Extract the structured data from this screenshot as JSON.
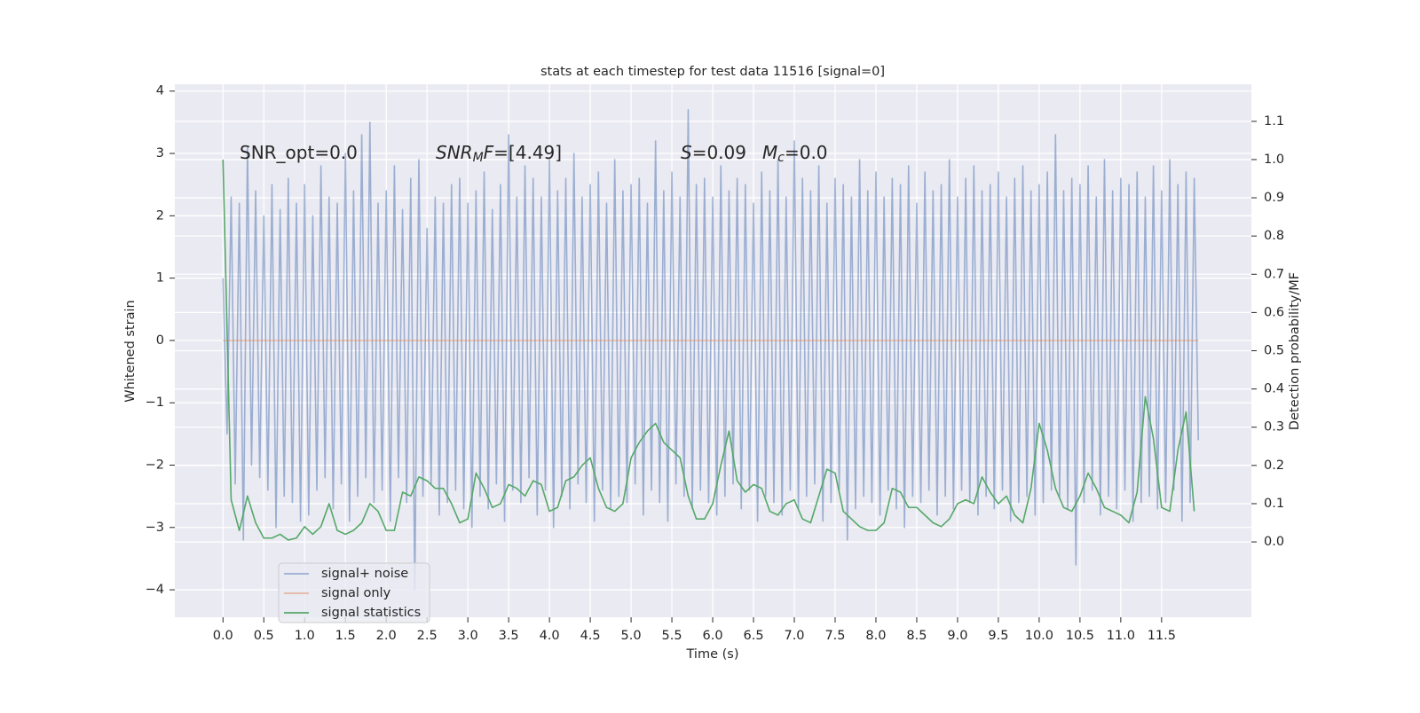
{
  "chart_data": {
    "type": "line",
    "title": "stats at each timestep for test data 11516 [signal=0]",
    "xlabel": "Time (s)",
    "ylabel": "Whitened strain",
    "y2label": "Detection probability/MF",
    "xlim": [
      -0.59,
      12.6
    ],
    "ylim": [
      -4.44,
      4.11
    ],
    "y2lim": [
      -0.197,
      1.197
    ],
    "xticks": [
      {
        "value": 0,
        "label": "0.0"
      },
      0.5,
      {
        "value": 1,
        "label": "1.0"
      },
      1.5,
      {
        "value": 2,
        "label": "2.0"
      },
      2.5,
      {
        "value": 3,
        "label": "3.0"
      },
      3.5,
      {
        "value": 4,
        "label": "4.0"
      },
      4.5,
      {
        "value": 5,
        "label": "5.0"
      },
      5.5,
      {
        "value": 6,
        "label": "6.0"
      },
      6.5,
      {
        "value": 7,
        "label": "7.0"
      },
      7.5,
      {
        "value": 8,
        "label": "8.0"
      },
      8.5,
      {
        "value": 9,
        "label": "9.0"
      },
      9.5,
      {
        "value": 10,
        "label": "10.0"
      },
      10.5,
      {
        "value": 11,
        "label": "11.0"
      },
      11.5
    ],
    "yticks": [
      {
        "value": -4,
        "label": "−4"
      },
      {
        "value": -3,
        "label": "−3"
      },
      {
        "value": -2,
        "label": "−2"
      },
      {
        "value": -1,
        "label": "−1"
      },
      0,
      1,
      2,
      3,
      4
    ],
    "y2ticks": [
      {
        "value": 0,
        "label": "0.0"
      },
      0.1,
      0.2,
      0.3,
      0.4,
      0.5,
      0.6,
      0.7,
      0.8,
      0.9,
      {
        "value": 1,
        "label": "1.0"
      },
      1.1
    ],
    "grid": true,
    "legend_position": "lower left",
    "annotations": [
      [
        {
          "text": "SNR_opt=0.0",
          "italic": false,
          "sub": false
        }
      ],
      [
        {
          "text": "SNR",
          "italic": true,
          "sub": false
        },
        {
          "text": "M",
          "italic": true,
          "sub": true
        },
        {
          "text": "F",
          "italic": true,
          "sub": false
        },
        {
          "text": "=[4.49]",
          "italic": false,
          "sub": false
        }
      ],
      [
        {
          "text": "S",
          "italic": true,
          "sub": false
        },
        {
          "text": "=0.09",
          "italic": false,
          "sub": false
        }
      ],
      [
        {
          "text": "M",
          "italic": true,
          "sub": false
        },
        {
          "text": "c",
          "italic": true,
          "sub": true
        },
        {
          "text": "=0.0",
          "italic": false,
          "sub": false
        }
      ]
    ],
    "series": [
      {
        "name": "signal+ noise",
        "color": "#4c72b0",
        "opacity": 0.5,
        "axis": "y",
        "x": [
          0,
          0.05,
          0.1,
          0.15,
          0.2,
          0.25,
          0.3,
          0.35,
          0.4,
          0.45,
          0.5,
          0.55,
          0.6,
          0.65,
          0.7,
          0.75,
          0.8,
          0.85,
          0.9,
          0.95,
          1,
          1.05,
          1.1,
          1.15,
          1.2,
          1.25,
          1.3,
          1.35,
          1.4,
          1.45,
          1.5,
          1.55,
          1.6,
          1.65,
          1.7,
          1.75,
          1.8,
          1.85,
          1.9,
          1.95,
          2,
          2.05,
          2.1,
          2.15,
          2.2,
          2.25,
          2.3,
          2.35,
          2.4,
          2.45,
          2.5,
          2.55,
          2.6,
          2.65,
          2.7,
          2.75,
          2.8,
          2.85,
          2.9,
          2.95,
          3,
          3.05,
          3.1,
          3.15,
          3.2,
          3.25,
          3.3,
          3.35,
          3.4,
          3.45,
          3.5,
          3.55,
          3.6,
          3.65,
          3.7,
          3.75,
          3.8,
          3.85,
          3.9,
          3.95,
          4,
          4.05,
          4.1,
          4.15,
          4.2,
          4.25,
          4.3,
          4.35,
          4.4,
          4.45,
          4.5,
          4.55,
          4.6,
          4.65,
          4.7,
          4.75,
          4.8,
          4.85,
          4.9,
          4.95,
          5,
          5.05,
          5.1,
          5.15,
          5.2,
          5.25,
          5.3,
          5.35,
          5.4,
          5.45,
          5.5,
          5.55,
          5.6,
          5.65,
          5.7,
          5.75,
          5.8,
          5.85,
          5.9,
          5.95,
          6,
          6.05,
          6.1,
          6.15,
          6.2,
          6.25,
          6.3,
          6.35,
          6.4,
          6.45,
          6.5,
          6.55,
          6.6,
          6.65,
          6.7,
          6.75,
          6.8,
          6.85,
          6.9,
          6.95,
          7,
          7.05,
          7.1,
          7.15,
          7.2,
          7.25,
          7.3,
          7.35,
          7.4,
          7.45,
          7.5,
          7.55,
          7.6,
          7.65,
          7.7,
          7.75,
          7.8,
          7.85,
          7.9,
          7.95,
          8,
          8.05,
          8.1,
          8.15,
          8.2,
          8.25,
          8.3,
          8.35,
          8.4,
          8.45,
          8.5,
          8.55,
          8.6,
          8.65,
          8.7,
          8.75,
          8.8,
          8.85,
          8.9,
          8.95,
          9,
          9.05,
          9.1,
          9.15,
          9.2,
          9.25,
          9.3,
          9.35,
          9.4,
          9.45,
          9.5,
          9.55,
          9.6,
          9.65,
          9.7,
          9.75,
          9.8,
          9.85,
          9.9,
          9.95,
          10,
          10.05,
          10.1,
          10.15,
          10.2,
          10.25,
          10.3,
          10.35,
          10.4,
          10.45,
          10.5,
          10.55,
          10.6,
          10.65,
          10.7,
          10.75,
          10.8,
          10.85,
          10.9,
          10.95,
          11,
          11.05,
          11.1,
          11.15,
          11.2,
          11.25,
          11.3,
          11.35,
          11.4,
          11.45,
          11.5,
          11.55,
          11.6,
          11.65,
          11.7,
          11.75,
          11.8,
          11.85,
          11.9,
          11.95
        ],
        "values": [
          1.0,
          -1.5,
          2.3,
          -2.3,
          2.2,
          -3.2,
          3.1,
          -2.0,
          2.4,
          -2.2,
          2.0,
          -2.4,
          2.5,
          -3.0,
          2.1,
          -2.5,
          2.6,
          -2.6,
          2.2,
          -2.9,
          2.5,
          -2.8,
          2.0,
          -2.4,
          2.8,
          -2.2,
          2.3,
          -2.7,
          2.2,
          -2.3,
          3.0,
          -2.9,
          2.4,
          -2.5,
          3.3,
          -2.2,
          3.5,
          -2.6,
          2.2,
          -2.4,
          2.4,
          -2.9,
          2.8,
          -2.2,
          2.1,
          -2.6,
          2.6,
          -4.0,
          2.9,
          -2.5,
          1.8,
          -2.3,
          2.3,
          -2.8,
          2.2,
          -2.6,
          2.5,
          -2.4,
          2.6,
          -2.7,
          2.2,
          -3.0,
          2.4,
          -2.5,
          2.7,
          -2.7,
          2.1,
          -2.3,
          2.5,
          -2.9,
          3.3,
          -2.4,
          2.3,
          -2.6,
          2.8,
          -2.2,
          2.6,
          -2.8,
          2.3,
          -2.4,
          2.9,
          -3.0,
          2.4,
          -2.5,
          2.6,
          -2.7,
          3.0,
          -2.3,
          2.3,
          -2.6,
          2.5,
          -2.9,
          2.7,
          -2.4,
          2.2,
          -2.7,
          2.9,
          -2.5,
          2.4,
          -2.6,
          2.5,
          -2.3,
          2.6,
          -2.8,
          2.2,
          -2.4,
          3.2,
          -2.6,
          2.4,
          -2.9,
          2.7,
          -2.3,
          2.3,
          -2.5,
          3.7,
          -2.7,
          2.5,
          -2.4,
          2.6,
          -2.6,
          2.3,
          -2.8,
          2.8,
          -2.5,
          2.4,
          -2.3,
          2.6,
          -2.7,
          2.5,
          -2.4,
          2.2,
          -2.9,
          2.7,
          -2.5,
          2.4,
          -2.6,
          2.9,
          -2.8,
          2.3,
          -2.4,
          3.2,
          -2.7,
          2.6,
          -2.5,
          2.4,
          -2.3,
          2.8,
          -2.9,
          2.2,
          -2.6,
          2.6,
          -2.4,
          2.5,
          -3.2,
          2.3,
          -2.7,
          2.9,
          -2.5,
          2.4,
          -2.6,
          2.7,
          -2.8,
          2.3,
          -2.4,
          2.6,
          -2.7,
          2.5,
          -3.0,
          2.8,
          -2.5,
          2.2,
          -2.6,
          2.7,
          -2.4,
          2.4,
          -2.8,
          2.5,
          -2.5,
          2.9,
          -2.7,
          2.3,
          -2.4,
          2.6,
          -2.6,
          2.8,
          -2.8,
          2.4,
          -2.5,
          2.5,
          -2.7,
          2.7,
          -2.4,
          2.3,
          -2.9,
          2.6,
          -2.6,
          2.8,
          -2.5,
          2.4,
          -2.8,
          2.5,
          -2.6,
          2.7,
          -2.4,
          3.3,
          -2.5,
          2.4,
          -2.7,
          2.6,
          -3.6,
          2.5,
          -2.6,
          2.8,
          -2.4,
          2.3,
          -2.8,
          2.9,
          -2.5,
          2.4,
          -2.7,
          2.6,
          -2.4,
          2.5,
          -2.9,
          2.7,
          -2.6,
          2.3,
          -2.5,
          2.8,
          -2.7,
          2.4,
          -2.6,
          2.9,
          -2.4,
          2.5,
          -2.9,
          2.7,
          -2.6,
          2.6,
          -1.6
        ]
      },
      {
        "name": "signal only",
        "color": "#dd8452",
        "opacity": 0.5,
        "axis": "y",
        "x": [
          0,
          11.95
        ],
        "values": [
          0,
          0
        ]
      },
      {
        "name": "signal statistics",
        "color": "#55a868",
        "opacity": 1,
        "axis": "y2",
        "x": [
          0,
          0.1,
          0.2,
          0.3,
          0.4,
          0.5,
          0.6,
          0.7,
          0.8,
          0.9,
          1,
          1.1,
          1.2,
          1.3,
          1.4,
          1.5,
          1.6,
          1.7,
          1.8,
          1.9,
          2,
          2.1,
          2.2,
          2.3,
          2.4,
          2.5,
          2.6,
          2.7,
          2.8,
          2.9,
          3,
          3.1,
          3.2,
          3.3,
          3.4,
          3.5,
          3.6,
          3.7,
          3.8,
          3.9,
          4,
          4.1,
          4.2,
          4.3,
          4.4,
          4.5,
          4.6,
          4.7,
          4.8,
          4.9,
          5,
          5.1,
          5.2,
          5.3,
          5.4,
          5.5,
          5.6,
          5.7,
          5.8,
          5.9,
          6,
          6.1,
          6.2,
          6.3,
          6.4,
          6.5,
          6.6,
          6.7,
          6.8,
          6.9,
          7,
          7.1,
          7.2,
          7.3,
          7.4,
          7.5,
          7.6,
          7.7,
          7.8,
          7.9,
          8,
          8.1,
          8.2,
          8.3,
          8.4,
          8.5,
          8.6,
          8.7,
          8.8,
          8.9,
          9,
          9.1,
          9.2,
          9.3,
          9.4,
          9.5,
          9.6,
          9.7,
          9.8,
          9.9,
          10,
          10.1,
          10.2,
          10.3,
          10.4,
          10.5,
          10.6,
          10.7,
          10.8,
          10.9,
          11,
          11.1,
          11.2,
          11.3,
          11.4,
          11.5,
          11.6,
          11.7,
          11.8,
          11.9
        ],
        "values": [
          1.0,
          0.11,
          0.03,
          0.12,
          0.05,
          0.01,
          0.01,
          0.02,
          0.005,
          0.01,
          0.04,
          0.02,
          0.04,
          0.1,
          0.03,
          0.02,
          0.03,
          0.05,
          0.1,
          0.08,
          0.03,
          0.03,
          0.13,
          0.12,
          0.17,
          0.16,
          0.14,
          0.14,
          0.1,
          0.05,
          0.06,
          0.18,
          0.14,
          0.09,
          0.1,
          0.15,
          0.14,
          0.12,
          0.16,
          0.15,
          0.08,
          0.09,
          0.16,
          0.17,
          0.2,
          0.22,
          0.14,
          0.09,
          0.08,
          0.1,
          0.22,
          0.26,
          0.29,
          0.31,
          0.26,
          0.24,
          0.22,
          0.12,
          0.06,
          0.06,
          0.1,
          0.2,
          0.29,
          0.16,
          0.13,
          0.15,
          0.14,
          0.08,
          0.07,
          0.1,
          0.11,
          0.06,
          0.05,
          0.12,
          0.19,
          0.18,
          0.08,
          0.06,
          0.04,
          0.03,
          0.03,
          0.05,
          0.14,
          0.13,
          0.09,
          0.09,
          0.07,
          0.05,
          0.04,
          0.06,
          0.1,
          0.11,
          0.1,
          0.17,
          0.13,
          0.1,
          0.12,
          0.07,
          0.05,
          0.14,
          0.31,
          0.24,
          0.14,
          0.09,
          0.08,
          0.12,
          0.18,
          0.14,
          0.09,
          0.08,
          0.07,
          0.05,
          0.13,
          0.38,
          0.27,
          0.09,
          0.08,
          0.24,
          0.34,
          0.08
        ]
      }
    ]
  }
}
